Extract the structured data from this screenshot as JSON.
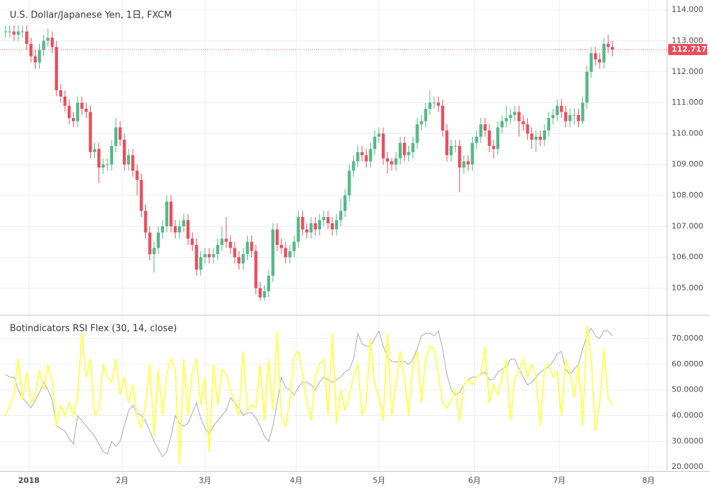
{
  "chart_data": [
    {
      "type": "candlestick",
      "title": "U.S. Dollar/Japanese Yen, 1日, FXCM",
      "up_color": "#53b987",
      "down_color": "#eb4d5c",
      "price_line_color": "#eb4d5c",
      "ylim": [
        104.14,
        114.32
      ],
      "yticks": [
        {
          "value": 105,
          "label": "105.000"
        },
        {
          "value": 106,
          "label": "106.000"
        },
        {
          "value": 107,
          "label": "107.000"
        },
        {
          "value": 108,
          "label": "108.000"
        },
        {
          "value": 109,
          "label": "109.000"
        },
        {
          "value": 110,
          "label": "110.000"
        },
        {
          "value": 111,
          "label": "111.000"
        },
        {
          "value": 112,
          "label": "112.000"
        },
        {
          "value": 113,
          "label": "113.000"
        },
        {
          "value": 114,
          "label": "114.000"
        }
      ],
      "grid": true,
      "open": [
        113.3,
        113.3,
        113.3,
        113.2,
        113.3,
        113.3,
        112.9,
        112.5,
        112.3,
        112.7,
        113.0,
        113.1,
        112.8,
        111.4,
        111.2,
        110.9,
        110.5,
        110.4,
        111.0,
        110.8,
        110.7,
        109.4,
        109.5,
        108.9,
        109.0,
        109.0,
        109.6,
        110.2,
        109.8,
        109.0,
        109.3,
        108.8,
        108.5,
        107.5,
        106.8,
        106.1,
        106.3,
        106.8,
        107.0,
        107.8,
        107.0,
        106.8,
        107.0,
        107.2,
        106.6,
        106.4,
        105.6,
        106.0,
        106.1,
        106.0,
        106.1,
        106.4,
        106.6,
        106.5,
        106.3,
        106.0,
        105.8,
        106.1,
        106.5,
        106.2,
        105.0,
        104.7,
        104.9,
        105.4,
        106.9,
        106.4,
        106.3,
        106.0,
        106.2,
        106.5,
        107.3,
        106.9,
        106.8,
        107.1,
        106.9,
        107.2,
        107.3,
        107.1,
        106.9,
        107.2,
        107.5,
        108.0,
        108.8,
        109.1,
        109.4,
        109.3,
        109.1,
        109.5,
        109.9,
        110.0,
        109.2,
        109.1,
        109.0,
        109.2,
        109.7,
        109.3,
        109.4,
        109.7,
        110.3,
        110.4,
        110.8,
        111.0,
        111.0,
        110.9,
        110.1,
        109.3,
        109.6,
        109.6,
        108.9,
        109.1,
        109.0,
        109.7,
        109.9,
        110.3,
        110.1,
        109.6,
        109.5,
        110.2,
        110.4,
        110.5,
        110.6,
        110.7,
        110.4,
        110.3,
        110.0,
        109.8,
        109.9,
        109.8,
        110.1,
        110.5,
        110.6,
        110.9,
        110.7,
        110.4,
        110.6,
        110.6,
        110.4,
        111.0,
        112.0,
        112.6,
        112.4,
        112.3,
        112.9,
        112.8
      ],
      "high": [
        113.5,
        113.5,
        113.5,
        113.5,
        113.5,
        113.5,
        113.1,
        112.7,
        112.9,
        113.2,
        113.4,
        113.3,
        113.0,
        111.6,
        111.4,
        111.1,
        110.7,
        111.2,
        111.2,
        111.0,
        110.9,
        109.7,
        109.7,
        109.2,
        109.2,
        109.8,
        110.5,
        110.4,
        110.0,
        109.5,
        109.5,
        109.0,
        108.7,
        107.7,
        107.0,
        106.5,
        107.0,
        107.2,
        108.0,
        108.0,
        107.2,
        107.2,
        107.4,
        107.4,
        106.8,
        106.6,
        106.2,
        106.3,
        106.3,
        106.3,
        106.6,
        107.0,
        107.3,
        106.7,
        106.5,
        106.2,
        106.3,
        106.7,
        106.7,
        106.4,
        105.2,
        105.1,
        105.6,
        107.1,
        107.1,
        106.6,
        106.5,
        106.4,
        106.7,
        107.5,
        107.5,
        107.1,
        107.3,
        107.3,
        107.4,
        107.5,
        107.5,
        107.3,
        107.4,
        107.9,
        108.2,
        109.0,
        109.3,
        109.6,
        109.6,
        109.5,
        109.7,
        110.1,
        110.2,
        110.2,
        109.4,
        109.2,
        109.4,
        109.9,
        109.9,
        109.6,
        109.9,
        110.5,
        110.6,
        111.0,
        111.4,
        111.2,
        111.2,
        111.1,
        110.3,
        109.8,
        109.8,
        109.8,
        109.3,
        109.3,
        109.9,
        110.1,
        110.5,
        110.5,
        110.3,
        109.8,
        110.4,
        110.6,
        110.9,
        110.8,
        110.9,
        110.9,
        110.6,
        110.5,
        110.2,
        110.1,
        110.1,
        110.3,
        110.7,
        110.8,
        111.1,
        111.1,
        110.9,
        110.8,
        110.8,
        110.8,
        111.2,
        112.2,
        112.8,
        112.8,
        112.6,
        113.1,
        113.2,
        113.0
      ],
      "low": [
        113.1,
        113.1,
        113.0,
        113.0,
        113.1,
        112.7,
        112.3,
        112.1,
        112.1,
        112.5,
        112.8,
        112.6,
        111.2,
        111.0,
        110.7,
        110.3,
        110.2,
        110.2,
        110.6,
        110.5,
        109.2,
        109.2,
        108.4,
        108.7,
        108.8,
        108.8,
        109.4,
        109.6,
        108.8,
        108.8,
        108.6,
        108.0,
        107.3,
        106.6,
        105.9,
        105.5,
        106.1,
        106.6,
        106.8,
        106.8,
        106.6,
        106.6,
        106.8,
        106.4,
        106.2,
        105.4,
        105.4,
        105.8,
        105.8,
        105.8,
        105.9,
        106.2,
        106.3,
        106.1,
        105.8,
        105.6,
        105.6,
        105.9,
        106.0,
        104.8,
        104.6,
        104.6,
        104.7,
        105.2,
        106.2,
        106.1,
        105.8,
        105.8,
        106.0,
        106.3,
        106.7,
        106.6,
        106.6,
        106.7,
        106.7,
        107.0,
        106.9,
        106.7,
        106.7,
        107.0,
        107.3,
        107.8,
        108.6,
        108.9,
        109.1,
        108.9,
        108.9,
        109.3,
        109.7,
        109.0,
        108.7,
        108.8,
        108.8,
        109.0,
        109.1,
        109.1,
        109.2,
        109.5,
        110.1,
        110.2,
        110.6,
        110.8,
        110.7,
        109.9,
        109.1,
        109.1,
        109.4,
        108.1,
        108.7,
        108.8,
        108.8,
        109.5,
        109.7,
        109.9,
        109.4,
        109.2,
        109.3,
        110.0,
        110.2,
        110.3,
        110.4,
        109.9,
        110.1,
        109.8,
        109.5,
        109.4,
        109.6,
        109.6,
        109.9,
        110.3,
        110.4,
        110.5,
        110.2,
        110.2,
        110.3,
        110.2,
        110.3,
        110.8,
        111.8,
        112.2,
        112.1,
        112.1,
        112.6,
        112.5
      ],
      "close": [
        113.3,
        113.3,
        113.2,
        113.3,
        113.3,
        112.9,
        112.5,
        112.3,
        112.7,
        113.0,
        113.1,
        112.8,
        111.4,
        111.2,
        110.9,
        110.5,
        110.4,
        111.0,
        110.8,
        110.7,
        109.4,
        109.5,
        108.9,
        109.0,
        109.0,
        109.6,
        110.2,
        109.8,
        109.0,
        109.3,
        108.8,
        108.5,
        107.5,
        106.8,
        106.1,
        106.3,
        106.8,
        107.0,
        107.8,
        107.0,
        106.8,
        107.0,
        107.2,
        106.6,
        106.4,
        105.6,
        106.0,
        106.1,
        106.0,
        106.1,
        106.4,
        106.6,
        106.5,
        106.3,
        106.0,
        105.8,
        106.1,
        106.5,
        106.2,
        105.0,
        104.7,
        104.9,
        105.4,
        106.9,
        106.4,
        106.3,
        106.0,
        106.2,
        106.5,
        107.3,
        106.9,
        106.8,
        107.1,
        106.9,
        107.2,
        107.3,
        107.1,
        106.9,
        107.2,
        107.5,
        108.0,
        108.8,
        109.1,
        109.4,
        109.3,
        109.1,
        109.5,
        109.9,
        110.0,
        109.2,
        109.1,
        109.0,
        109.2,
        109.7,
        109.3,
        109.4,
        109.7,
        110.3,
        110.4,
        110.8,
        111.0,
        111.0,
        110.9,
        110.1,
        109.3,
        109.6,
        109.6,
        108.9,
        109.1,
        109.0,
        109.7,
        109.9,
        110.3,
        110.1,
        109.6,
        109.5,
        110.2,
        110.4,
        110.5,
        110.6,
        110.7,
        110.4,
        110.3,
        110.0,
        109.8,
        109.9,
        109.8,
        110.1,
        110.5,
        110.6,
        110.9,
        110.7,
        110.4,
        110.6,
        110.6,
        110.4,
        111.0,
        112.0,
        112.6,
        112.4,
        112.3,
        112.9,
        112.8,
        112.717
      ]
    },
    {
      "type": "line",
      "title": "Botindicators RSI Flex (30, 14, close)",
      "ylim": [
        18.4,
        79
      ],
      "yticks": [
        {
          "value": 20,
          "label": "20.0000"
        },
        {
          "value": 30,
          "label": "30.0000"
        },
        {
          "value": 40,
          "label": "40.0000"
        },
        {
          "value": 50,
          "label": "50.0000"
        },
        {
          "value": 60,
          "label": "60.0000"
        },
        {
          "value": 70,
          "label": "70.0000"
        }
      ],
      "grid": true,
      "xlim": [
        -1.3,
        155.8
      ],
      "xticks": [
        {
          "value": 5.5,
          "label": "2018"
        },
        {
          "value": 27.5,
          "label": "2月"
        },
        {
          "value": 47,
          "label": "3月"
        },
        {
          "value": 68.5,
          "label": "4月"
        },
        {
          "value": 88,
          "label": "5月"
        },
        {
          "value": 110.5,
          "label": "6月"
        },
        {
          "value": 130.5,
          "label": "7月"
        },
        {
          "value": 151.5,
          "label": "8月"
        }
      ],
      "series": [
        {
          "color": "#a8a8a8",
          "values": [
            56,
            55,
            55,
            50,
            47,
            45,
            43,
            46,
            49,
            53,
            50,
            46,
            36,
            35,
            34,
            31,
            29,
            40,
            38,
            36,
            34,
            32,
            29,
            26,
            25,
            30,
            28,
            30,
            36,
            42,
            44,
            41,
            40,
            38,
            34,
            30,
            27,
            24,
            26,
            32,
            40,
            37,
            36,
            37,
            41,
            45,
            39,
            35,
            33,
            36,
            38,
            40,
            42,
            47,
            45,
            43,
            40,
            41,
            41,
            39,
            36,
            32,
            30,
            36,
            45,
            55,
            51,
            50,
            48,
            51,
            53,
            53,
            52,
            50,
            53,
            55,
            54,
            53,
            54,
            55,
            57,
            58,
            62,
            72,
            68,
            67,
            67,
            70,
            73,
            67,
            63,
            61,
            61,
            61,
            61,
            60,
            62,
            66,
            71,
            72,
            72,
            71,
            73,
            66,
            56,
            50,
            48,
            49,
            52,
            54,
            55,
            55,
            56,
            57,
            54,
            54,
            57,
            58,
            59,
            62,
            62,
            58,
            55,
            52,
            53,
            55,
            57,
            58,
            59,
            61,
            64,
            65,
            58,
            56,
            58,
            60,
            66,
            71,
            74,
            71,
            70,
            73,
            73,
            71
          ]
        },
        {
          "color": "#ffff55",
          "values": [
            40,
            44,
            48,
            62,
            46,
            57,
            45,
            48,
            58,
            50,
            60,
            53,
            36,
            44,
            40,
            45,
            40,
            48,
            72,
            55,
            62,
            40,
            42,
            60,
            55,
            53,
            62,
            48,
            55,
            45,
            52,
            40,
            35,
            44,
            60,
            32,
            58,
            40,
            56,
            62,
            58,
            21,
            62,
            40,
            57,
            62,
            44,
            55,
            26,
            60,
            44,
            58,
            56,
            50,
            45,
            40,
            65,
            42,
            44,
            43,
            60,
            38,
            62,
            42,
            73,
            40,
            36,
            46,
            63,
            65,
            56,
            45,
            38,
            55,
            60,
            62,
            40,
            72,
            37,
            50,
            42,
            48,
            55,
            60,
            40,
            45,
            70,
            52,
            47,
            38,
            72,
            40,
            52,
            65,
            55,
            40,
            60,
            65,
            45,
            62,
            67,
            66,
            56,
            45,
            43,
            46,
            50,
            38,
            52,
            54,
            52,
            55,
            56,
            67,
            45,
            52,
            48,
            55,
            62,
            38,
            55,
            57,
            62,
            55,
            60,
            55,
            36,
            58,
            60,
            55,
            57,
            40,
            62,
            57,
            47,
            60,
            36,
            75,
            62,
            34,
            45,
            66,
            47,
            44
          ]
        }
      ]
    }
  ]
}
